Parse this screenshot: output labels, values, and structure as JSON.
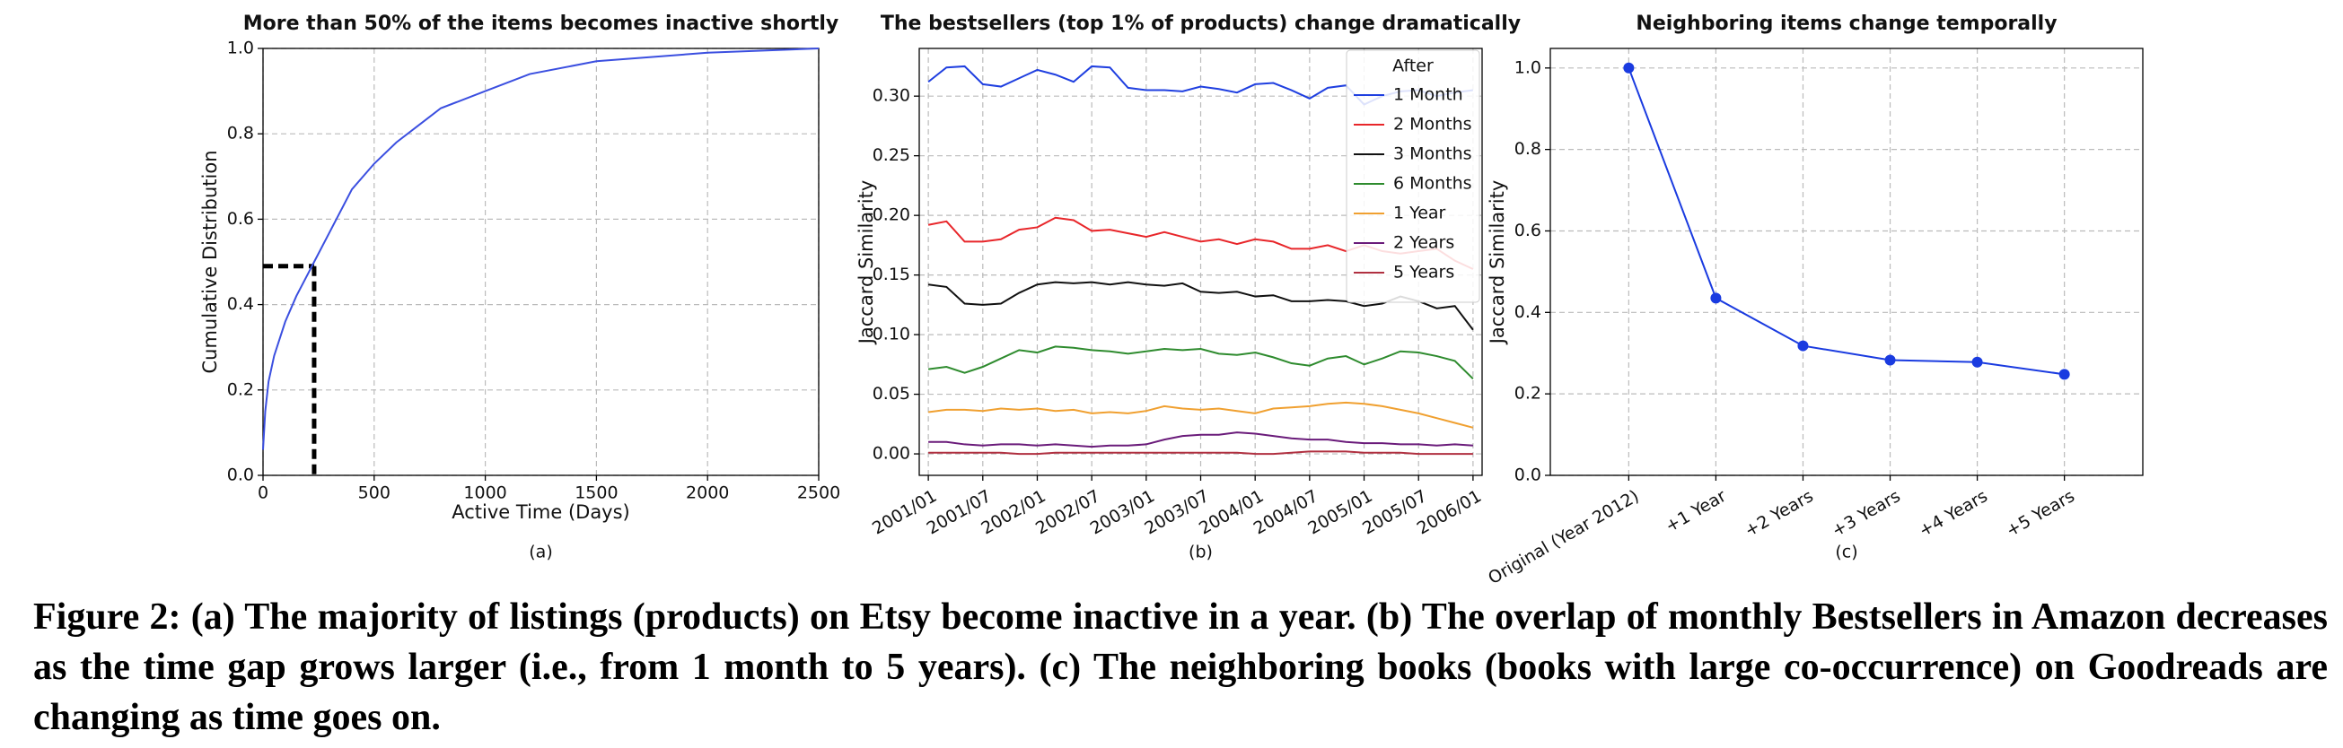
{
  "chart_data": [
    {
      "type": "line",
      "title": "More than 50% of the items becomes inactive shortly",
      "panel_label": "(a)",
      "xlabel": "Active Time (Days)",
      "ylabel": "Cumulative Distribution",
      "color": "#3b4fe0",
      "x": [
        0,
        10,
        25,
        50,
        100,
        150,
        200,
        230,
        300,
        400,
        500,
        600,
        700,
        800,
        1000,
        1200,
        1500,
        2000,
        2500
      ],
      "values": [
        0.06,
        0.15,
        0.22,
        0.28,
        0.36,
        0.42,
        0.47,
        0.5,
        0.57,
        0.67,
        0.73,
        0.78,
        0.82,
        0.86,
        0.9,
        0.94,
        0.97,
        0.99,
        1.0
      ],
      "reference": {
        "x": 230,
        "y": 0.49
      },
      "xlim": [
        0,
        2500
      ],
      "xticks": [
        0,
        500,
        1000,
        1500,
        2000,
        2500
      ],
      "ylim": [
        0,
        1.0
      ],
      "yticks": [
        {
          "value": 0,
          "label": "0.0"
        },
        {
          "value": 0.2,
          "label": "0.2"
        },
        {
          "value": 0.4,
          "label": "0.4"
        },
        {
          "value": 0.6,
          "label": "0.6"
        },
        {
          "value": 0.8,
          "label": "0.8"
        },
        {
          "value": 1,
          "label": "1.0"
        }
      ],
      "grid": true
    },
    {
      "type": "line",
      "title": "The bestsellers (top 1% of products) change dramatically",
      "panel_label": "(b)",
      "ylabel": "Jaccard Similarity",
      "legend_title": "After",
      "legend": "upper right",
      "x": [
        "2001/01",
        "2001/03",
        "2001/05",
        "2001/07",
        "2001/09",
        "2001/11",
        "2002/01",
        "2002/03",
        "2002/05",
        "2002/07",
        "2002/09",
        "2002/11",
        "2003/01",
        "2003/03",
        "2003/05",
        "2003/07",
        "2003/09",
        "2003/11",
        "2004/01",
        "2004/03",
        "2004/05",
        "2004/07",
        "2004/09",
        "2004/11",
        "2005/01",
        "2005/03",
        "2005/05",
        "2005/07",
        "2005/09",
        "2005/11",
        "2006/01"
      ],
      "xlim": [
        "2000/12",
        "2006/02"
      ],
      "xticks": [
        "2001/01",
        "2001/07",
        "2002/01",
        "2002/07",
        "2003/01",
        "2003/07",
        "2004/01",
        "2004/07",
        "2005/01",
        "2005/07",
        "2006/01"
      ],
      "ylim": [
        -0.018,
        0.34
      ],
      "yticks": [
        {
          "value": 0,
          "label": "0.00"
        },
        0.05,
        {
          "value": 0.1,
          "label": "0.10"
        },
        0.15,
        {
          "value": 0.2,
          "label": "0.20"
        },
        0.25,
        {
          "value": 0.3,
          "label": "0.30"
        }
      ],
      "grid": true,
      "series": [
        {
          "name": "1 Month",
          "color": "#1f3fe0",
          "values": [
            0.312,
            0.324,
            0.325,
            0.31,
            0.308,
            0.315,
            0.322,
            0.318,
            0.312,
            0.325,
            0.324,
            0.307,
            0.305,
            0.305,
            0.304,
            0.308,
            0.306,
            0.303,
            0.31,
            0.311,
            0.305,
            0.298,
            0.307,
            0.309,
            0.293,
            0.3,
            0.304,
            0.305,
            0.3,
            0.303,
            0.305
          ]
        },
        {
          "name": "2 Months",
          "color": "#e8262a",
          "values": [
            0.192,
            0.195,
            0.178,
            0.178,
            0.18,
            0.188,
            0.19,
            0.198,
            0.196,
            0.187,
            0.188,
            0.185,
            0.182,
            0.186,
            0.182,
            0.178,
            0.18,
            0.176,
            0.18,
            0.178,
            0.172,
            0.172,
            0.175,
            0.17,
            0.175,
            0.17,
            0.168,
            0.17,
            0.172,
            0.162,
            0.155
          ]
        },
        {
          "name": "3 Months",
          "color": "#111111",
          "values": [
            0.142,
            0.14,
            0.126,
            0.125,
            0.126,
            0.135,
            0.142,
            0.144,
            0.143,
            0.144,
            0.142,
            0.144,
            0.142,
            0.141,
            0.143,
            0.136,
            0.135,
            0.136,
            0.132,
            0.133,
            0.128,
            0.128,
            0.129,
            0.128,
            0.124,
            0.126,
            0.132,
            0.128,
            0.122,
            0.124,
            0.104
          ]
        },
        {
          "name": "6 Months",
          "color": "#2e8b2e",
          "values": [
            0.071,
            0.073,
            0.068,
            0.073,
            0.08,
            0.087,
            0.085,
            0.09,
            0.089,
            0.087,
            0.086,
            0.084,
            0.086,
            0.088,
            0.087,
            0.088,
            0.084,
            0.083,
            0.085,
            0.081,
            0.076,
            0.074,
            0.08,
            0.082,
            0.075,
            0.08,
            0.086,
            0.085,
            0.082,
            0.078,
            0.063
          ]
        },
        {
          "name": "1 Year",
          "color": "#f0a030",
          "values": [
            0.035,
            0.037,
            0.037,
            0.036,
            0.038,
            0.037,
            0.038,
            0.036,
            0.037,
            0.034,
            0.035,
            0.034,
            0.036,
            0.04,
            0.038,
            0.037,
            0.038,
            0.036,
            0.034,
            0.038,
            0.039,
            0.04,
            0.042,
            0.043,
            0.042,
            0.04,
            0.037,
            0.034,
            0.03,
            0.026,
            0.022
          ]
        },
        {
          "name": "2 Years",
          "color": "#6a1b7a",
          "values": [
            0.01,
            0.01,
            0.008,
            0.007,
            0.008,
            0.008,
            0.007,
            0.008,
            0.007,
            0.006,
            0.007,
            0.007,
            0.008,
            0.012,
            0.015,
            0.016,
            0.016,
            0.018,
            0.017,
            0.015,
            0.013,
            0.012,
            0.012,
            0.01,
            0.009,
            0.009,
            0.008,
            0.008,
            0.007,
            0.008,
            0.007
          ]
        },
        {
          "name": "5 Years",
          "color": "#b03040",
          "values": [
            0.001,
            0.001,
            0.001,
            0.001,
            0.001,
            0,
            0,
            0.001,
            0.001,
            0.001,
            0.001,
            0.001,
            0.001,
            0.001,
            0.001,
            0.001,
            0.001,
            0.001,
            0,
            0,
            0.001,
            0.002,
            0.002,
            0.002,
            0.001,
            0.001,
            0.001,
            0,
            0,
            0,
            0
          ]
        }
      ]
    },
    {
      "type": "line",
      "title": "Neighboring items change temporally",
      "panel_label": "(c)",
      "ylabel": "Jaccard Similarity",
      "color": "#1a3be0",
      "markers": true,
      "categories": [
        "Original (Year 2012)",
        "+1 Year",
        "+2 Years",
        "+3 Years",
        "+4 Years",
        "+5 Years"
      ],
      "values": [
        1.0,
        0.435,
        0.318,
        0.283,
        0.278,
        0.248
      ],
      "ylim": [
        0,
        1.048
      ],
      "yticks": [
        {
          "value": 0,
          "label": "0.0"
        },
        {
          "value": 0.2,
          "label": "0.2"
        },
        {
          "value": 0.4,
          "label": "0.4"
        },
        {
          "value": 0.6,
          "label": "0.6"
        },
        {
          "value": 0.8,
          "label": "0.8"
        },
        {
          "value": 1,
          "label": "1.0"
        }
      ],
      "grid": true
    }
  ],
  "caption": "Figure 2: (a) The majority of listings (products) on Etsy become inactive in a year. (b) The overlap of monthly Bestsellers in Amazon decreases as the time gap grows larger (i.e., from 1 month to 5 years). (c) The neighboring books (books with large co-occurrence) on Goodreads are changing as time goes on."
}
